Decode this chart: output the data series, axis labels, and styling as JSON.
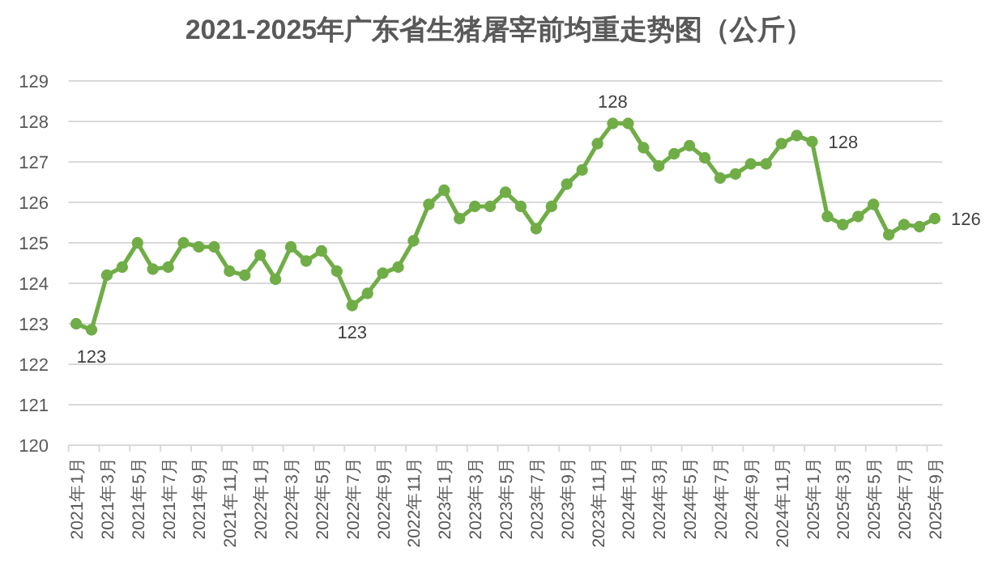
{
  "chart_data": {
    "type": "line",
    "title": "2021-2025年广东省生猪屠宰前均重走势图（公斤）",
    "categories": [
      "2021年1月",
      null,
      "2021年3月",
      null,
      "2021年5月",
      null,
      "2021年7月",
      null,
      "2021年9月",
      null,
      "2021年11月",
      null,
      "2022年1月",
      null,
      "2022年3月",
      null,
      "2022年5月",
      null,
      "2022年7月",
      null,
      "2022年9月",
      null,
      "2022年11月",
      null,
      "2023年1月",
      null,
      "2023年3月",
      null,
      "2023年5月",
      null,
      "2023年7月",
      null,
      "2023年9月",
      null,
      "2023年11月",
      null,
      "2024年1月",
      null,
      "2024年3月",
      null,
      "2024年5月",
      null,
      "2024年7月",
      null,
      "2024年9月",
      null,
      "2024年11月",
      null,
      "2025年1月",
      null,
      "2025年3月",
      null,
      "2025年5月",
      null,
      "2025年7月",
      null,
      "2025年9月"
    ],
    "series": [
      {
        "color": "#70ad47",
        "values": [
          123.0,
          122.85,
          124.2,
          124.4,
          125.0,
          124.35,
          124.4,
          125.0,
          124.9,
          124.9,
          124.3,
          124.2,
          124.7,
          124.1,
          124.9,
          124.55,
          124.8,
          124.3,
          123.45,
          123.75,
          124.25,
          124.4,
          125.05,
          125.95,
          126.3,
          125.6,
          125.9,
          125.9,
          126.25,
          125.9,
          125.35,
          125.9,
          126.45,
          126.8,
          127.45,
          127.95,
          127.95,
          127.35,
          126.9,
          127.2,
          127.4,
          127.1,
          126.6,
          126.7,
          126.95,
          126.95,
          127.45,
          127.65,
          127.5,
          125.65,
          125.45,
          125.65,
          125.95,
          125.2,
          125.45,
          125.4,
          125.6
        ],
        "value_labels": [
          null,
          "123",
          null,
          null,
          null,
          null,
          null,
          null,
          null,
          null,
          null,
          null,
          null,
          null,
          null,
          null,
          null,
          null,
          "123",
          null,
          null,
          null,
          null,
          null,
          null,
          null,
          null,
          null,
          null,
          null,
          null,
          null,
          null,
          null,
          null,
          "128",
          null,
          null,
          null,
          null,
          null,
          null,
          null,
          null,
          null,
          null,
          null,
          null,
          "128",
          null,
          null,
          null,
          null,
          null,
          null,
          null,
          "126"
        ]
      }
    ],
    "ylim": [
      120,
      129
    ],
    "yticks": [
      120,
      121,
      122,
      123,
      124,
      125,
      126,
      127,
      128,
      129
    ],
    "grid": "y",
    "marker": "circle",
    "line_style": "solid"
  }
}
